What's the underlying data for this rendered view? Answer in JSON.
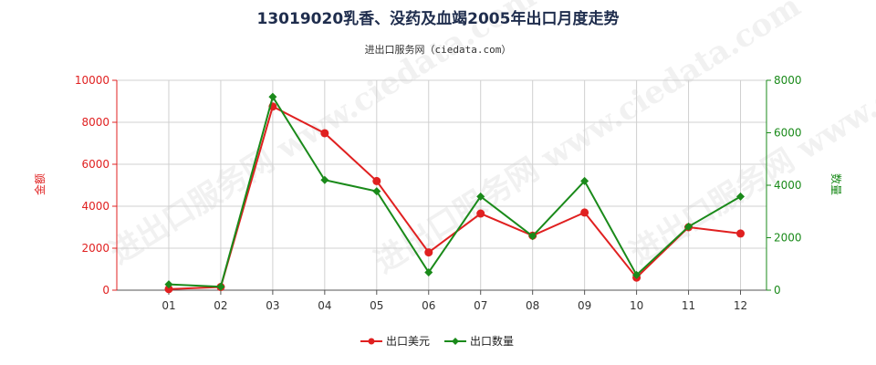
{
  "chart_data": {
    "type": "line",
    "title": "13019020乳香、没药及血竭2005年出口月度走势",
    "subtitle": "进出口服务网（ciedata.com）",
    "watermark": "进出口服务网 www.ciedata.com",
    "categories": [
      "01",
      "02",
      "03",
      "04",
      "05",
      "06",
      "07",
      "08",
      "09",
      "10",
      "11",
      "12"
    ],
    "y_left": {
      "label": "金额",
      "ylim": [
        0,
        10000
      ],
      "ticks": [
        0,
        2000,
        4000,
        6000,
        8000,
        10000
      ],
      "color": "#e02020"
    },
    "y_right": {
      "label": "数量",
      "ylim": [
        0,
        8000
      ],
      "ticks": [
        0,
        2000,
        4000,
        6000,
        8000
      ],
      "color": "#1a8a1a"
    },
    "series": [
      {
        "name": "出口美元",
        "axis": "left",
        "color": "#e02020",
        "values": [
          50,
          150,
          8750,
          7480,
          5200,
          1800,
          3650,
          2600,
          3700,
          600,
          3000,
          2700
        ]
      },
      {
        "name": "出口数量",
        "axis": "right",
        "color": "#1a8a1a",
        "values": [
          220,
          130,
          7370,
          4200,
          3770,
          680,
          3570,
          2060,
          4160,
          580,
          2420,
          3570
        ]
      }
    ],
    "grid": true,
    "legend_position": "bottom-center"
  }
}
